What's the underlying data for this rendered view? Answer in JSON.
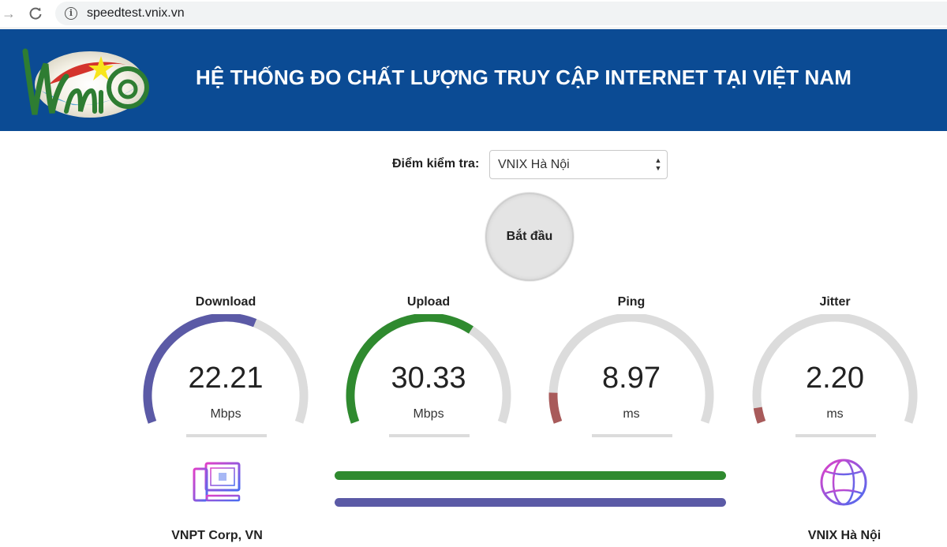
{
  "browser": {
    "url": "speedtest.vnix.vn",
    "forward_icon": "arrow-right-icon",
    "reload_icon": "reload-icon",
    "info_icon": "info-icon"
  },
  "header": {
    "title": "HỆ THỐNG ĐO CHẤT LƯỢNG TRUY CẬP INTERNET TẠI VIỆT NAM",
    "logo_text": "Vnnic",
    "background": "#0b4b94"
  },
  "server_select": {
    "label": "Điểm kiểm tra:",
    "value": "VNIX Hà Nội"
  },
  "start_button": {
    "label": "Bắt đầu"
  },
  "gauges": [
    {
      "id": "download",
      "title": "Download",
      "value": "22.21",
      "unit": "Mbps",
      "fill_fraction": 0.6,
      "color": "#5b5aa6"
    },
    {
      "id": "upload",
      "title": "Upload",
      "value": "30.33",
      "unit": "Mbps",
      "fill_fraction": 0.65,
      "color": "#2f8a2f"
    },
    {
      "id": "ping",
      "title": "Ping",
      "value": "8.97",
      "unit": "ms",
      "fill_fraction": 0.1,
      "color": "#a85a5a"
    },
    {
      "id": "jitter",
      "title": "Jitter",
      "value": "2.20",
      "unit": "ms",
      "fill_fraction": 0.05,
      "color": "#a85a5a"
    }
  ],
  "client": {
    "name": "VNPT Corp, VN",
    "icon": "computer-icon"
  },
  "server": {
    "name": "VNIX Hà Nội",
    "icon": "globe-icon"
  },
  "progress": {
    "upload": {
      "fraction": 1.0,
      "color": "#2f8a2f"
    },
    "download": {
      "fraction": 1.0,
      "color": "#5b5aa6"
    }
  },
  "colors": {
    "track": "#dcdcdc",
    "icon_gradient_start": "#e040c8",
    "icon_gradient_end": "#4a6cf0"
  }
}
